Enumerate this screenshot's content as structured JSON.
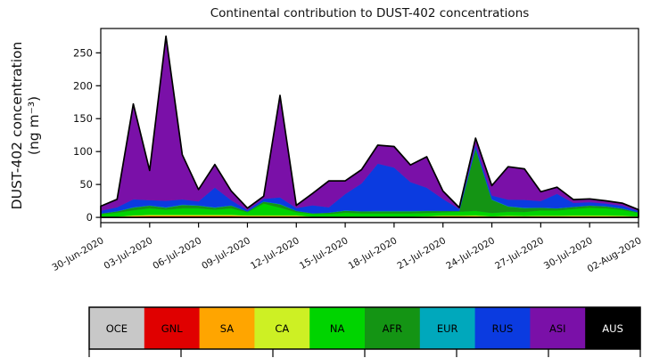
{
  "chart_data": {
    "type": "area",
    "stacked": true,
    "title": "Continental contribution to DUST-402 concentrations",
    "ylabel_line1": "DUST-402 concentration",
    "ylabel_line2": "(ng m⁻³)",
    "xlabel": "",
    "x": [
      "30-Jun-2020",
      "01-Jul-2020",
      "02-Jul-2020",
      "03-Jul-2020",
      "04-Jul-2020",
      "05-Jul-2020",
      "06-Jul-2020",
      "07-Jul-2020",
      "08-Jul-2020",
      "09-Jul-2020",
      "10-Jul-2020",
      "11-Jul-2020",
      "12-Jul-2020",
      "13-Jul-2020",
      "14-Jul-2020",
      "15-Jul-2020",
      "16-Jul-2020",
      "17-Jul-2020",
      "18-Jul-2020",
      "19-Jul-2020",
      "20-Jul-2020",
      "21-Jul-2020",
      "22-Jul-2020",
      "23-Jul-2020",
      "24-Jul-2020",
      "25-Jul-2020",
      "26-Jul-2020",
      "27-Jul-2020",
      "28-Jul-2020",
      "29-Jul-2020",
      "30-Jul-2020",
      "31-Jul-2020",
      "01-Aug-2020",
      "02-Aug-2020"
    ],
    "x_tick_labels": [
      "30-Jun-2020",
      "03-Jul-2020",
      "06-Jul-2020",
      "09-Jul-2020",
      "12-Jul-2020",
      "15-Jul-2020",
      "18-Jul-2020",
      "21-Jul-2020",
      "24-Jul-2020",
      "27-Jul-2020",
      "30-Jul-2020",
      "02-Aug-2020"
    ],
    "x_tick_indices": [
      0,
      3,
      6,
      9,
      12,
      15,
      18,
      21,
      24,
      27,
      30,
      33
    ],
    "x_tick_rotation_deg": 30,
    "y_ticks": [
      0,
      50,
      100,
      150,
      200,
      250
    ],
    "ylim": [
      -8,
      287
    ],
    "grid": false,
    "outline_color": "#000000",
    "legend_position": "bottom-bar",
    "series": [
      {
        "name": "OCE",
        "color": "#c8c8c8",
        "label_color": "#000000",
        "values": [
          0.3,
          0.3,
          0.3,
          0.3,
          0.3,
          0.3,
          0.3,
          0.3,
          0.3,
          0.3,
          0.3,
          0.3,
          0.3,
          0.3,
          0.3,
          0.3,
          0.3,
          0.3,
          0.3,
          0.3,
          0.3,
          0.3,
          0.3,
          0.3,
          0.3,
          0.3,
          0.3,
          0.3,
          0.3,
          0.3,
          0.3,
          0.3,
          0.3,
          0.3
        ]
      },
      {
        "name": "GNL",
        "color": "#e00000",
        "label_color": "#000000",
        "values": [
          0.2,
          0.3,
          1,
          1.5,
          1.5,
          1.5,
          1.5,
          1.5,
          1.5,
          1,
          1,
          1,
          1,
          0.3,
          0.3,
          0.3,
          0.3,
          0.3,
          0.3,
          0.3,
          0.5,
          1,
          1,
          1,
          0.5,
          0.8,
          0.5,
          0.5,
          0.5,
          0.5,
          0.5,
          0.5,
          0.5,
          0.3
        ]
      },
      {
        "name": "SA",
        "color": "#ffa500",
        "label_color": "#000000",
        "values": [
          0.2,
          0.3,
          0.8,
          1,
          1,
          1,
          1,
          1,
          1,
          0.8,
          0.8,
          0.8,
          0.8,
          0.3,
          0.3,
          0.3,
          0.3,
          0.3,
          0.3,
          0.3,
          0.5,
          0.8,
          0.8,
          0.8,
          0.5,
          0.8,
          0.8,
          1,
          1,
          1,
          1,
          1,
          0.8,
          0.5
        ]
      },
      {
        "name": "CA",
        "color": "#cdf024",
        "label_color": "#000000",
        "values": [
          0.2,
          0.3,
          0.8,
          1,
          1,
          1,
          1,
          1,
          1,
          0.8,
          0.8,
          0.8,
          0.8,
          0.3,
          0.3,
          0.3,
          0.3,
          0.3,
          0.3,
          0.3,
          0.4,
          0.6,
          0.6,
          0.8,
          0.5,
          0.6,
          0.6,
          0.8,
          0.8,
          1,
          1,
          1,
          0.8,
          0.5
        ]
      },
      {
        "name": "NA",
        "color": "#00d400",
        "label_color": "#000000",
        "values": [
          4,
          6,
          8,
          10,
          8,
          10,
          10,
          8,
          10,
          5,
          18,
          12,
          5,
          4,
          4,
          6,
          5,
          5,
          5,
          5,
          5,
          5,
          6,
          7,
          5,
          6,
          6,
          8,
          8,
          10,
          12,
          11,
          9,
          5
        ]
      },
      {
        "name": "AFR",
        "color": "#149414",
        "label_color": "#000000",
        "values": [
          1,
          2,
          4,
          4,
          3,
          5,
          4,
          3,
          4,
          1,
          3,
          5,
          2,
          1,
          2,
          3,
          3,
          3,
          3,
          3,
          3,
          2,
          1,
          95,
          20,
          8,
          6,
          4,
          3,
          3,
          3,
          3,
          2,
          1
        ]
      },
      {
        "name": "EUR",
        "color": "#00a8bc",
        "label_color": "#000000",
        "values": [
          0.2,
          0.2,
          0.5,
          0.5,
          0.5,
          0.5,
          0.5,
          0.5,
          0.5,
          0.2,
          0.3,
          0.5,
          0.3,
          0.2,
          0.2,
          0.3,
          0.3,
          0.5,
          0.5,
          0.5,
          0.5,
          0.3,
          0.2,
          0.5,
          0.5,
          0.5,
          0.5,
          0.3,
          0.3,
          0.3,
          0.3,
          0.3,
          0.3,
          0.2
        ]
      },
      {
        "name": "RUS",
        "color": "#0b3be0",
        "label_color": "#000000",
        "values": [
          4,
          6,
          12,
          8,
          10,
          8,
          6,
          30,
          8,
          2,
          4,
          10,
          4,
          12,
          8,
          25,
          42,
          72,
          66,
          44,
          35,
          18,
          3,
          5,
          6,
          10,
          12,
          10,
          22,
          6,
          5,
          4,
          4,
          2
        ]
      },
      {
        "name": "ASI",
        "color": "#7a10a8",
        "label_color": "#000000",
        "values": [
          7,
          12,
          145,
          45,
          250,
          68,
          18,
          35,
          14,
          3,
          4,
          155,
          4,
          18,
          40,
          20,
          21,
          28,
          32,
          26,
          47,
          12,
          2,
          10,
          15,
          50,
          47,
          14,
          10,
          5,
          5,
          4,
          4,
          2
        ]
      },
      {
        "name": "AUS",
        "color": "#000000",
        "label_color": "#ffffff",
        "values": [
          0,
          0,
          0,
          0,
          0,
          0,
          0,
          0,
          0,
          0,
          0,
          0,
          0,
          0,
          0,
          0,
          0,
          0,
          0,
          0,
          0,
          0,
          0,
          0,
          0,
          0,
          0,
          0,
          0,
          0,
          0,
          0,
          0,
          0
        ]
      }
    ]
  }
}
